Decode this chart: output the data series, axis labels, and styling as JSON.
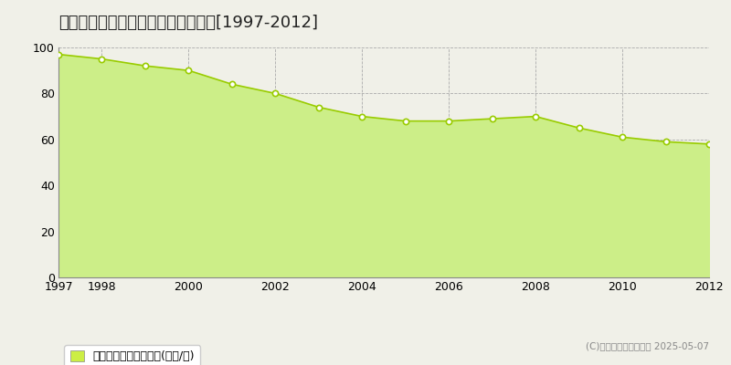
{
  "title": "大阪市平野区平野東　基準地価推移[1997-2012]",
  "years": [
    1997,
    1998,
    1999,
    2000,
    2001,
    2002,
    2003,
    2004,
    2005,
    2006,
    2007,
    2008,
    2009,
    2010,
    2011,
    2012
  ],
  "values": [
    97,
    95,
    92,
    90,
    84,
    80,
    74,
    70,
    68,
    68,
    69,
    70,
    65,
    61,
    59,
    58
  ],
  "ylim": [
    0,
    100
  ],
  "xlim": [
    1997,
    2012
  ],
  "yticks": [
    0,
    20,
    40,
    60,
    80,
    100
  ],
  "xticks": [
    1997,
    1998,
    2000,
    2002,
    2004,
    2006,
    2008,
    2010,
    2012
  ],
  "line_color": "#99cc00",
  "fill_color": "#ccee88",
  "marker_face": "#ffffff",
  "marker_edge": "#99cc00",
  "bg_color": "#f0f0e8",
  "plot_bg_color": "#f0f0e8",
  "grid_color": "#aaaaaa",
  "title_fontsize": 13,
  "tick_fontsize": 9,
  "legend_label": "基準地価　平均啴単価(万円/啴)",
  "copyright_text": "(C)土地価格ドットコム 2025-05-07",
  "legend_color": "#ccee44"
}
